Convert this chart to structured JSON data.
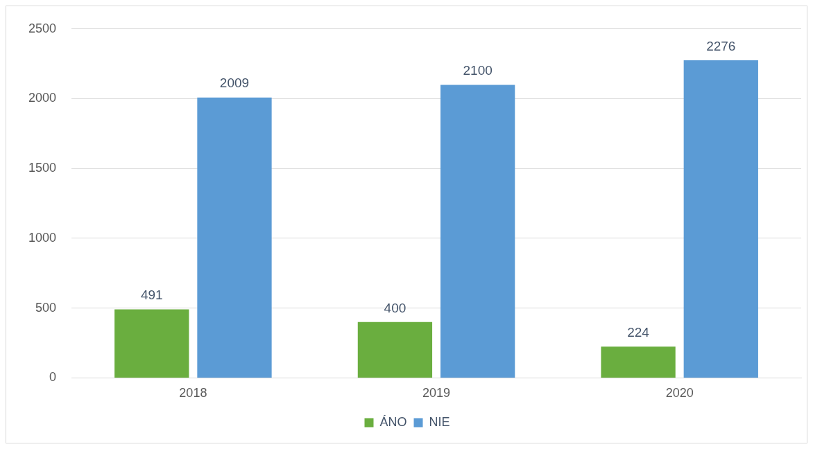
{
  "chart_data": {
    "type": "bar",
    "categories": [
      "2018",
      "2019",
      "2020"
    ],
    "series": [
      {
        "name": "ÁNO",
        "color": "#6aae3f",
        "values": [
          491,
          400,
          224
        ]
      },
      {
        "name": "NIE",
        "color": "#5b9bd5",
        "values": [
          2009,
          2100,
          2276
        ]
      }
    ],
    "ylim": [
      0,
      2500
    ],
    "yticks": [
      0,
      500,
      1000,
      1500,
      2000,
      2500
    ],
    "grid": "y",
    "legend": "bottom",
    "data_labels": true
  }
}
